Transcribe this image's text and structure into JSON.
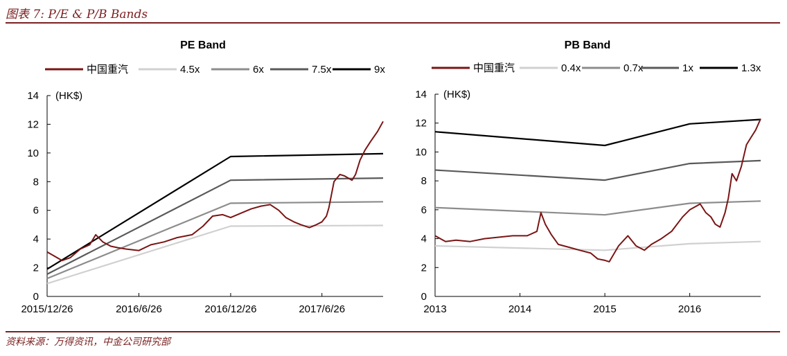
{
  "figure_title": "图表 7: P/E & P/B Bands",
  "source": "资料来源：万得资讯，中金公司研究部",
  "colors": {
    "accent": "#7a1f1f",
    "stock": "#7a1414",
    "band1": "#d0d0d0",
    "band2": "#8c8c8c",
    "band3": "#595959",
    "band4": "#000000"
  },
  "chart_data": [
    {
      "type": "line",
      "title": "PE Band",
      "unit_label": "(HK$)",
      "ylim": [
        0,
        14
      ],
      "yticks": [
        0,
        2,
        4,
        6,
        8,
        10,
        12,
        14
      ],
      "xlim": [
        "2015-12-26",
        "2017-10-26"
      ],
      "xticks": [
        {
          "date": "2015-12-26",
          "label": "2015/12/26"
        },
        {
          "date": "2016-06-26",
          "label": "2016/6/26"
        },
        {
          "date": "2016-12-26",
          "label": "2016/12/26"
        },
        {
          "date": "2017-06-26",
          "label": "2017/6/26"
        }
      ],
      "legend": [
        "中国重汽",
        "4.5x",
        "6x",
        "7.5x",
        "9x"
      ],
      "series": [
        {
          "name": "中国重汽",
          "color": "#7a1414",
          "x": [
            "2015-12-26",
            "2016-01-10",
            "2016-01-25",
            "2016-02-10",
            "2016-03-01",
            "2016-03-20",
            "2016-04-01",
            "2016-04-15",
            "2016-05-01",
            "2016-05-15",
            "2016-06-01",
            "2016-06-26",
            "2016-07-20",
            "2016-08-15",
            "2016-09-10",
            "2016-10-10",
            "2016-11-01",
            "2016-11-20",
            "2016-12-10",
            "2016-12-26",
            "2017-01-15",
            "2017-02-05",
            "2017-02-25",
            "2017-03-15",
            "2017-04-01",
            "2017-04-15",
            "2017-05-01",
            "2017-05-15",
            "2017-06-01",
            "2017-06-15",
            "2017-06-26",
            "2017-07-05",
            "2017-07-10",
            "2017-07-20",
            "2017-08-01",
            "2017-08-10",
            "2017-08-25",
            "2017-09-01",
            "2017-09-10",
            "2017-09-20",
            "2017-10-01",
            "2017-10-15",
            "2017-10-26"
          ],
          "y": [
            3.1,
            2.8,
            2.5,
            2.7,
            3.3,
            3.6,
            4.3,
            3.8,
            3.5,
            3.4,
            3.3,
            3.2,
            3.6,
            3.8,
            4.1,
            4.3,
            4.9,
            5.6,
            5.7,
            5.5,
            5.8,
            6.1,
            6.3,
            6.4,
            6.0,
            5.5,
            5.2,
            5.0,
            4.8,
            5.0,
            5.2,
            5.6,
            6.2,
            8.0,
            8.5,
            8.4,
            8.1,
            8.5,
            9.5,
            10.2,
            10.8,
            11.5,
            12.2
          ]
        },
        {
          "name": "4.5x",
          "color": "#d0d0d0",
          "x": [
            "2015-12-26",
            "2016-12-26",
            "2017-10-26"
          ],
          "y": [
            0.9,
            4.9,
            4.95
          ]
        },
        {
          "name": "6x",
          "color": "#8c8c8c",
          "x": [
            "2015-12-26",
            "2016-12-26",
            "2017-10-26"
          ],
          "y": [
            1.25,
            6.5,
            6.6
          ]
        },
        {
          "name": "7.5x",
          "color": "#595959",
          "x": [
            "2015-12-26",
            "2016-12-26",
            "2017-10-26"
          ],
          "y": [
            1.55,
            8.1,
            8.25
          ]
        },
        {
          "name": "9x",
          "color": "#000000",
          "x": [
            "2015-12-26",
            "2016-12-26",
            "2017-10-26"
          ],
          "y": [
            1.9,
            9.75,
            9.95
          ]
        }
      ]
    },
    {
      "type": "line",
      "title": "PB Band",
      "unit_label": "(HK$)",
      "ylim": [
        0,
        14
      ],
      "yticks": [
        0,
        2,
        4,
        6,
        8,
        10,
        12,
        14
      ],
      "xlim": [
        "2013-01-01",
        "2016-11-01"
      ],
      "xticks": [
        {
          "date": "2013-01-01",
          "label": "2013"
        },
        {
          "date": "2014-01-01",
          "label": "2014"
        },
        {
          "date": "2015-01-01",
          "label": "2015"
        },
        {
          "date": "2016-01-01",
          "label": "2016"
        }
      ],
      "legend": [
        "中国重汽",
        "0.4x",
        "0.7x",
        "1x",
        "1.3x"
      ],
      "series": [
        {
          "name": "中国重汽",
          "color": "#7a1414",
          "x": [
            "2013-01-01",
            "2013-02-15",
            "2013-04-01",
            "2013-06-01",
            "2013-08-01",
            "2013-10-01",
            "2013-12-01",
            "2014-02-01",
            "2014-03-15",
            "2014-04-01",
            "2014-04-20",
            "2014-05-15",
            "2014-06-15",
            "2014-08-01",
            "2014-09-15",
            "2014-11-01",
            "2014-12-01",
            "2015-01-01",
            "2015-01-20",
            "2015-03-01",
            "2015-04-10",
            "2015-05-15",
            "2015-06-20",
            "2015-07-20",
            "2015-09-01",
            "2015-10-15",
            "2015-12-01",
            "2016-01-01",
            "2016-02-15",
            "2016-03-10",
            "2016-04-01",
            "2016-04-20",
            "2016-05-10",
            "2016-06-01",
            "2016-06-15",
            "2016-07-01",
            "2016-07-20",
            "2016-08-10",
            "2016-09-01",
            "2016-09-20",
            "2016-10-10",
            "2016-11-01"
          ],
          "y": [
            4.2,
            3.8,
            3.9,
            3.8,
            4.0,
            4.1,
            4.2,
            4.2,
            4.5,
            5.8,
            5.0,
            4.3,
            3.6,
            3.4,
            3.2,
            3.0,
            2.6,
            2.5,
            2.4,
            3.5,
            4.2,
            3.5,
            3.2,
            3.6,
            4.0,
            4.5,
            5.5,
            6.0,
            6.4,
            5.8,
            5.5,
            5.0,
            4.8,
            5.8,
            6.8,
            8.5,
            8.0,
            9.0,
            10.5,
            11.0,
            11.5,
            12.3
          ]
        },
        {
          "name": "0.4x",
          "color": "#d0d0d0",
          "x": [
            "2013-01-01",
            "2015-01-01",
            "2016-01-01",
            "2016-11-01"
          ],
          "y": [
            3.5,
            3.2,
            3.65,
            3.8
          ]
        },
        {
          "name": "0.7x",
          "color": "#8c8c8c",
          "x": [
            "2013-01-01",
            "2015-01-01",
            "2016-01-01",
            "2016-11-01"
          ],
          "y": [
            6.15,
            5.65,
            6.45,
            6.6
          ]
        },
        {
          "name": "1x",
          "color": "#595959",
          "x": [
            "2013-01-01",
            "2015-01-01",
            "2016-01-01",
            "2016-11-01"
          ],
          "y": [
            8.75,
            8.05,
            9.2,
            9.4
          ]
        },
        {
          "name": "1.3x",
          "color": "#000000",
          "x": [
            "2013-01-01",
            "2015-01-01",
            "2016-01-01",
            "2016-11-01"
          ],
          "y": [
            11.4,
            10.45,
            11.95,
            12.25
          ]
        }
      ]
    }
  ]
}
